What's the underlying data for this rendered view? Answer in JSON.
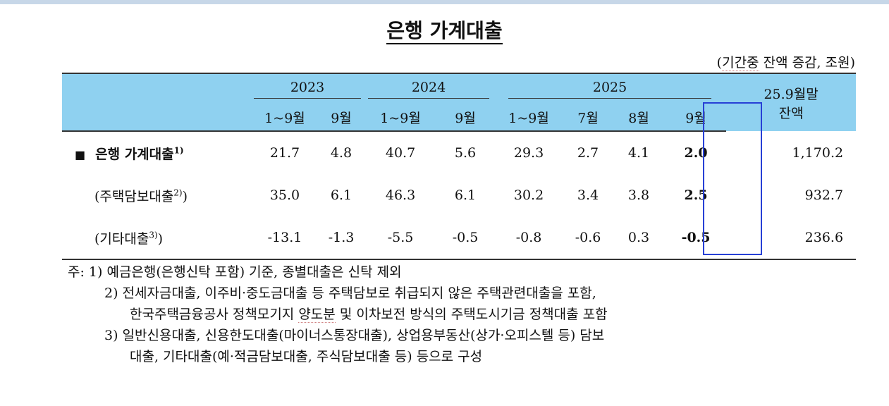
{
  "title": "은행 가계대출",
  "unit_note": {
    "open": "(",
    "dotted": "기간중",
    "rest": " 잔액 증감, 조원)"
  },
  "header": {
    "years": [
      "2023",
      "2024",
      "2025"
    ],
    "balance_header_line1": "25.9월말",
    "balance_header_line2": "잔액",
    "sub": [
      "1~9월",
      "9월",
      "1~9월",
      "9월",
      "1~9월",
      "7월",
      "8월",
      "9월"
    ]
  },
  "rows": [
    {
      "bullet": "■",
      "label": "은행 가계대출",
      "sup": "1)",
      "values": [
        "21.7",
        "4.8",
        "40.7",
        "5.6",
        "29.3",
        "2.7",
        "4.1",
        "2.0"
      ],
      "balance": "1,170.2"
    },
    {
      "bullet": "",
      "label": "(주택담보대출",
      "sup": "2)",
      "close": ")",
      "values": [
        "35.0",
        "6.1",
        "46.3",
        "6.1",
        "30.2",
        "3.4",
        "3.8",
        "2.5"
      ],
      "balance": "932.7"
    },
    {
      "bullet": "",
      "label": "(기타대출",
      "sup": "3)",
      "close": ")",
      "values": [
        "-13.1",
        "-1.3",
        "-5.5",
        "-0.5",
        "-0.8",
        "-0.6",
        "0.3",
        "-0.5"
      ],
      "balance": "236.6"
    }
  ],
  "notes": {
    "n1": "주: 1) 예금은행(은행신탁 포함) 기준, 종별대출은 신탁 제외",
    "n2": "2) 전세자금대출, 이주비·중도금대출 등 주택담보로 취급되지 않은 주택관련대출을 포함,",
    "n2b_pre": "한국주택금융공사 정책모기지 ",
    "n2b_dotted": "양도분",
    "n2b_post": " 및 이차보전 방식의 주택도시기금 정책대출 포함",
    "n3": "3) 일반신용대출, 신용한도대출(마이너스통장대출), 상업용부동산(상가·오피스텔 등) 담보",
    "n3b": "대출, 기타대출(예·적금담보대출, 주식담보대출 등) 등으로 구성"
  }
}
